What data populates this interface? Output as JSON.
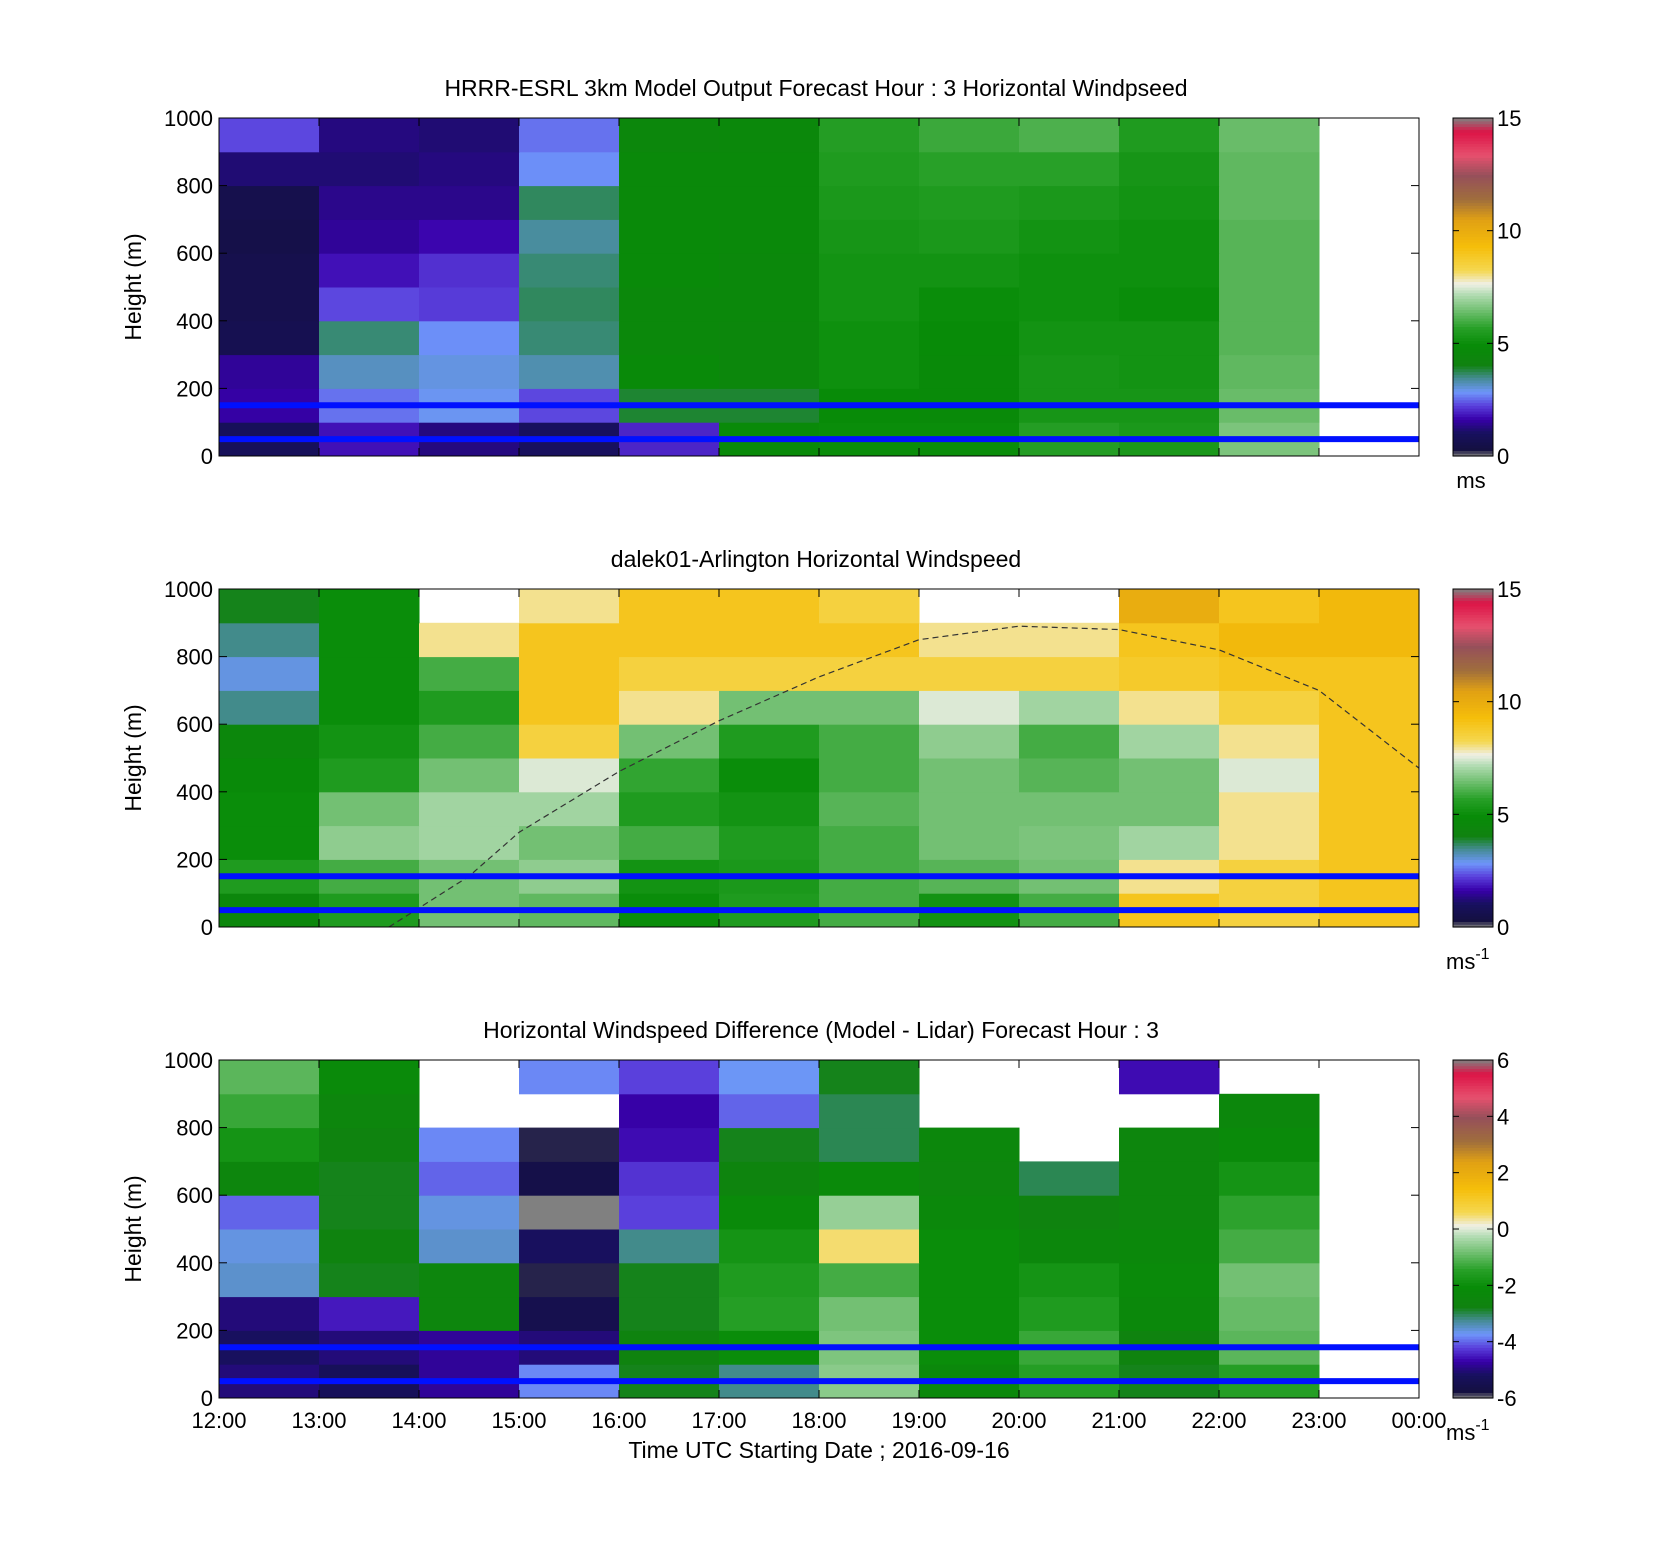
{
  "chart_data": [
    {
      "type": "heatmap",
      "title": "HRRR-ESRL 3km Model Output   Forecast Hour : 3 Horizontal Windpseed",
      "ylabel": "Height (m)",
      "ylim": [
        0,
        1000
      ],
      "yticks": [
        "0",
        "200",
        "400",
        "600",
        "800",
        "1000"
      ],
      "xlim_hours": [
        12,
        24
      ],
      "colorbar": {
        "range": [
          0,
          15
        ],
        "ticks": [
          "0",
          "5",
          "10",
          "15"
        ],
        "unit": "ms"
      },
      "reference_lines_m": [
        150,
        50
      ],
      "columns_start_hour": [
        12,
        13,
        14,
        15,
        16,
        17,
        18,
        19,
        20,
        21,
        22
      ],
      "value_bands_m": [
        0,
        100,
        200,
        300,
        400,
        500,
        600,
        700,
        800,
        900,
        1000
      ],
      "values": [
        [
          0.9,
          1.8,
          1.3,
          1.0,
          2.0,
          4.8,
          5.0,
          5.0,
          5.6,
          5.4,
          6.6
        ],
        [
          1.6,
          2.6,
          2.9,
          2.3,
          3.9,
          3.9,
          4.9,
          4.8,
          5.3,
          5.3,
          6.4
        ],
        [
          1.5,
          3.2,
          3.0,
          3.3,
          4.8,
          4.5,
          5.1,
          4.8,
          5.3,
          5.2,
          6.3
        ],
        [
          0.7,
          3.6,
          2.8,
          3.6,
          4.6,
          4.5,
          5.1,
          4.9,
          5.2,
          5.2,
          6.2
        ],
        [
          0.6,
          2.3,
          2.2,
          3.7,
          4.6,
          4.6,
          5.2,
          5.0,
          5.1,
          5.0,
          6.2
        ],
        [
          0.6,
          1.8,
          2.1,
          3.6,
          4.8,
          4.6,
          5.2,
          5.2,
          5.1,
          5.1,
          6.2
        ],
        [
          0.5,
          1.5,
          1.7,
          3.4,
          4.8,
          4.7,
          5.3,
          5.4,
          5.2,
          5.1,
          6.2
        ],
        [
          0.6,
          1.4,
          1.4,
          3.7,
          4.7,
          4.7,
          5.4,
          5.5,
          5.4,
          5.2,
          6.3
        ],
        [
          1.2,
          1.2,
          1.3,
          2.8,
          4.7,
          4.7,
          5.5,
          5.7,
          5.7,
          5.3,
          6.3
        ],
        [
          2.3,
          1.3,
          1.2,
          2.6,
          4.5,
          4.6,
          5.6,
          5.9,
          6.1,
          5.5,
          6.4
        ]
      ]
    },
    {
      "type": "heatmap",
      "title": "dalek01-Arlington  Horizontal Windspeed",
      "ylabel": "Height (m)",
      "ylim": [
        0,
        1000
      ],
      "yticks": [
        "0",
        "200",
        "400",
        "600",
        "800",
        "1000"
      ],
      "xlim_hours": [
        12,
        24
      ],
      "colorbar": {
        "range": [
          0,
          15
        ],
        "ticks": [
          "0",
          "5",
          "10",
          "15"
        ],
        "unit": "ms",
        "unit_exp": "-1"
      },
      "reference_lines_m": [
        150,
        50
      ],
      "overlay": "dashed boundary-layer height curve",
      "boundary_layer_curve": {
        "x_hours": [
          13.7,
          14.5,
          15,
          16,
          17,
          18,
          19,
          20,
          21,
          22,
          23,
          24
        ],
        "y_m": [
          0,
          150,
          280,
          460,
          610,
          740,
          850,
          890,
          880,
          820,
          700,
          470
        ]
      },
      "columns_start_hour": [
        12,
        13,
        14,
        15,
        16,
        17,
        18,
        19,
        20,
        21,
        22,
        23
      ],
      "value_bands_m": [
        0,
        100,
        200,
        300,
        400,
        500,
        600,
        700,
        800,
        900,
        1000
      ],
      "values": [
        [
          4.5,
          5.5,
          6.5,
          6.3,
          5.0,
          5.5,
          6.0,
          5.2,
          6.0,
          9.0,
          8.5,
          9.0
        ],
        [
          5.5,
          6.0,
          6.5,
          6.8,
          5.2,
          5.4,
          6.0,
          6.2,
          6.5,
          8.0,
          8.5,
          9.0
        ],
        [
          5.0,
          6.8,
          7.0,
          6.5,
          6.0,
          5.5,
          6.0,
          6.5,
          6.6,
          7.0,
          8.0,
          9.0
        ],
        [
          5.0,
          6.5,
          7.0,
          7.0,
          5.5,
          5.2,
          6.2,
          6.5,
          6.5,
          6.5,
          8.0,
          9.0
        ],
        [
          4.8,
          5.5,
          6.5,
          7.5,
          5.8,
          5.0,
          6.0,
          6.5,
          6.2,
          6.5,
          7.5,
          9.0
        ],
        [
          4.5,
          5.2,
          6.0,
          8.5,
          6.5,
          5.5,
          6.0,
          6.8,
          6.0,
          7.0,
          8.0,
          9.0
        ],
        [
          3.5,
          5.0,
          5.5,
          9.0,
          8.0,
          6.5,
          6.5,
          7.5,
          7.0,
          8.0,
          8.5,
          9.0
        ],
        [
          3.0,
          5.0,
          6.0,
          9.0,
          8.5,
          8.5,
          8.5,
          8.5,
          8.5,
          8.8,
          9.0,
          9.0
        ],
        [
          3.5,
          5.0,
          8.0,
          9.0,
          9.0,
          9.0,
          9.0,
          8.0,
          8.0,
          9.0,
          9.5,
          9.5
        ],
        [
          4.0,
          5.0,
          null,
          8.0,
          9.0,
          9.0,
          8.5,
          null,
          null,
          10.0,
          9.0,
          9.5
        ]
      ]
    },
    {
      "type": "heatmap",
      "title": "Horizontal Windspeed Difference (Model - Lidar) Forecast Hour : 3",
      "xlabel": "Time UTC  Starting Date ; 2016-09-16",
      "ylabel": "Height (m)",
      "ylim": [
        0,
        1000
      ],
      "yticks": [
        "0",
        "200",
        "400",
        "600",
        "800",
        "1000"
      ],
      "xlim_hours": [
        12,
        24
      ],
      "xticks": [
        "12:00",
        "13:00",
        "14:00",
        "15:00",
        "16:00",
        "17:00",
        "18:00",
        "19:00",
        "20:00",
        "21:00",
        "22:00",
        "23:00",
        "00:00"
      ],
      "colorbar": {
        "range": [
          -6,
          6
        ],
        "ticks": [
          "-6",
          "-4",
          "-2",
          "0",
          "2",
          "4",
          "6"
        ],
        "unit": "ms",
        "unit_exp": "-1"
      },
      "reference_lines_m": [
        150,
        50
      ],
      "columns_start_hour": [
        12,
        13,
        14,
        15,
        16,
        17,
        18,
        19,
        20,
        21,
        22
      ],
      "value_bands_m": [
        0,
        100,
        200,
        300,
        400,
        500,
        600,
        700,
        800,
        900,
        1000
      ],
      "values": [
        [
          -5.0,
          -5.3,
          -4.8,
          -3.8,
          -2.8,
          -3.2,
          -0.6,
          -2.3,
          -1.5,
          -2.8,
          -1.5
        ],
        [
          -5.2,
          -5.0,
          -4.8,
          -5.0,
          -2.7,
          -2.0,
          -0.7,
          -2.0,
          -1.3,
          -2.7,
          -1.0
        ],
        [
          -5.0,
          -4.5,
          -2.5,
          -5.5,
          -2.8,
          -1.5,
          -0.8,
          -2.0,
          -1.6,
          -2.3,
          -0.9
        ],
        [
          -3.5,
          -2.8,
          -2.5,
          -5.8,
          -2.8,
          -1.6,
          -1.2,
          -2.0,
          -1.8,
          -2.2,
          -0.8
        ],
        [
          -3.6,
          -2.7,
          -3.5,
          -5.2,
          -3.2,
          -1.8,
          0.5,
          -2.0,
          -2.4,
          -2.3,
          -1.2
        ],
        [
          -4.0,
          -2.8,
          -3.6,
          -6.0,
          -4.2,
          -2.2,
          -0.5,
          -2.3,
          -2.7,
          -2.5,
          -1.4
        ],
        [
          -2.5,
          -2.8,
          -4.0,
          -5.6,
          -4.3,
          -2.6,
          -2.2,
          -2.5,
          -3.0,
          -2.5,
          -1.8
        ],
        [
          -1.8,
          -2.7,
          -3.8,
          -5.8,
          -4.6,
          -2.8,
          -3.0,
          -2.4,
          null,
          -2.5,
          -2.2
        ],
        [
          -1.3,
          -2.5,
          null,
          null,
          -4.7,
          -4.0,
          -3.0,
          null,
          null,
          null,
          -2.4
        ],
        [
          -1.0,
          -2.2,
          null,
          -3.8,
          -4.2,
          -3.7,
          -2.8,
          null,
          null,
          -4.6,
          null
        ]
      ]
    }
  ]
}
